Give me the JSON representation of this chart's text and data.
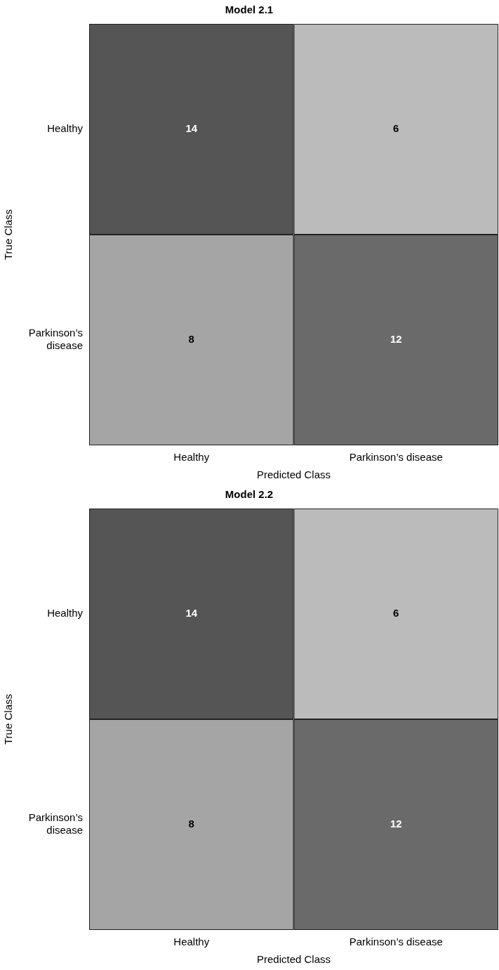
{
  "chart_data": [
    {
      "type": "heatmap",
      "title": "Model 2.1",
      "xlabel": "Predicted Class",
      "ylabel": "True Class",
      "categories": [
        "Healthy",
        "Parkinson’s disease"
      ],
      "y_categories": [
        "Healthy",
        "Parkinson’s disease"
      ],
      "cells": [
        [
          14,
          6
        ],
        [
          8,
          12
        ]
      ],
      "colors": [
        [
          "#555555",
          "#bbbbbb"
        ],
        [
          "#a5a5a5",
          "#6a6a6a"
        ]
      ],
      "data_labels": true,
      "grid": false,
      "legend": false
    },
    {
      "type": "heatmap",
      "title": "Model 2.2",
      "xlabel": "Predicted Class",
      "ylabel": "True Class",
      "categories": [
        "Healthy",
        "Parkinson’s disease"
      ],
      "y_categories": [
        "Healthy",
        "Parkinson’s disease"
      ],
      "cells": [
        [
          14,
          6
        ],
        [
          8,
          12
        ]
      ],
      "colors": [
        [
          "#555555",
          "#bbbbbb"
        ],
        [
          "#a5a5a5",
          "#6a6a6a"
        ]
      ],
      "data_labels": true,
      "grid": false,
      "legend": false
    }
  ]
}
